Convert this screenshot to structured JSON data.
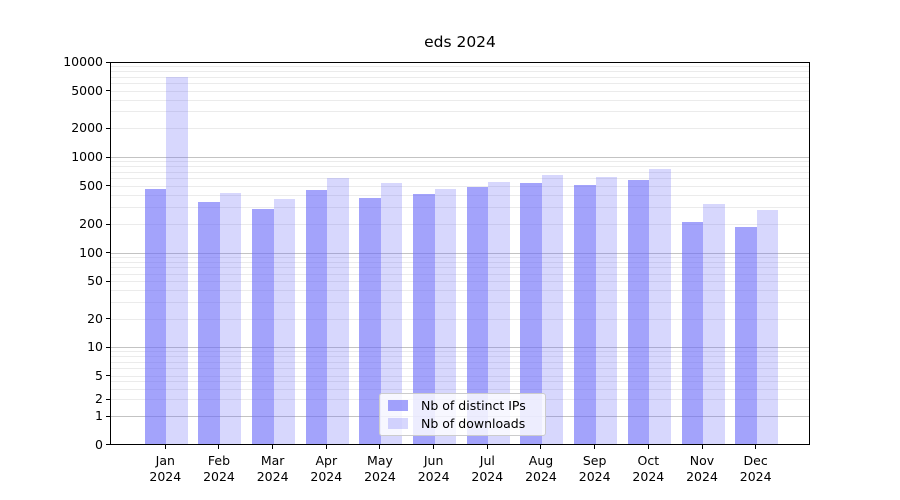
{
  "title": "eds 2024",
  "chart_data": {
    "type": "bar",
    "title": "eds 2024",
    "categories": [
      "Jan 2024",
      "Feb 2024",
      "Mar 2024",
      "Apr 2024",
      "May 2024",
      "Jun 2024",
      "Jul 2024",
      "Aug 2024",
      "Sep 2024",
      "Oct 2024",
      "Nov 2024",
      "Dec 2024"
    ],
    "series": [
      {
        "name": "Nb of distinct IPs",
        "color": "rgba(107,107,248,0.62)",
        "values": [
          450,
          330,
          280,
          440,
          365,
          405,
          475,
          530,
          495,
          560,
          205,
          185
        ]
      },
      {
        "name": "Nb of downloads",
        "color": "rgba(107,107,248,0.27)",
        "values": [
          6800,
          415,
          360,
          600,
          525,
          460,
          535,
          645,
          615,
          735,
          320,
          275
        ]
      }
    ],
    "yscale": "symlog",
    "ylim": [
      0,
      10000
    ],
    "yticks": [
      0,
      1,
      2,
      5,
      10,
      20,
      50,
      100,
      200,
      500,
      1000,
      2000,
      5000,
      10000
    ],
    "grid": true,
    "legend_position": "lower center"
  },
  "colors": {
    "grid_major": "#c3c3c3",
    "grid_minor": "#ebebeb",
    "spine": "#000000",
    "background": "#ffffff",
    "text": "#000000"
  }
}
